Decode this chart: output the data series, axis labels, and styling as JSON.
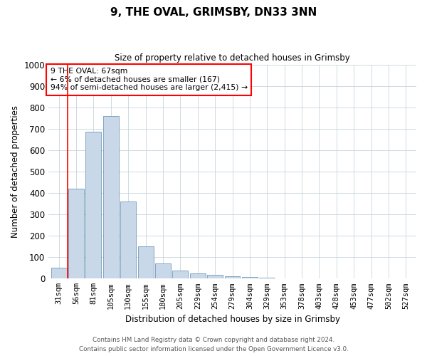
{
  "title": "9, THE OVAL, GRIMSBY, DN33 3NN",
  "subtitle": "Size of property relative to detached houses in Grimsby",
  "xlabel": "Distribution of detached houses by size in Grimsby",
  "ylabel": "Number of detached properties",
  "bar_color": "#c8d8e8",
  "bar_edge_color": "#5a8ab0",
  "categories": [
    "31sqm",
    "56sqm",
    "81sqm",
    "105sqm",
    "130sqm",
    "155sqm",
    "180sqm",
    "205sqm",
    "229sqm",
    "254sqm",
    "279sqm",
    "304sqm",
    "329sqm",
    "353sqm",
    "378sqm",
    "403sqm",
    "428sqm",
    "453sqm",
    "477sqm",
    "502sqm",
    "527sqm"
  ],
  "values": [
    50,
    420,
    685,
    760,
    360,
    150,
    70,
    38,
    25,
    18,
    12,
    8,
    4,
    0,
    0,
    0,
    0,
    0,
    0,
    0,
    0
  ],
  "ylim": [
    0,
    1000
  ],
  "yticks": [
    0,
    100,
    200,
    300,
    400,
    500,
    600,
    700,
    800,
    900,
    1000
  ],
  "annotation_line1": "9 THE OVAL: 67sqm",
  "annotation_line2": "← 6% of detached houses are smaller (167)",
  "annotation_line3": "94% of semi-detached houses are larger (2,415) →",
  "grid_color": "#c8d4dc",
  "footer_line1": "Contains HM Land Registry data © Crown copyright and database right 2024.",
  "footer_line2": "Contains public sector information licensed under the Open Government Licence v3.0."
}
